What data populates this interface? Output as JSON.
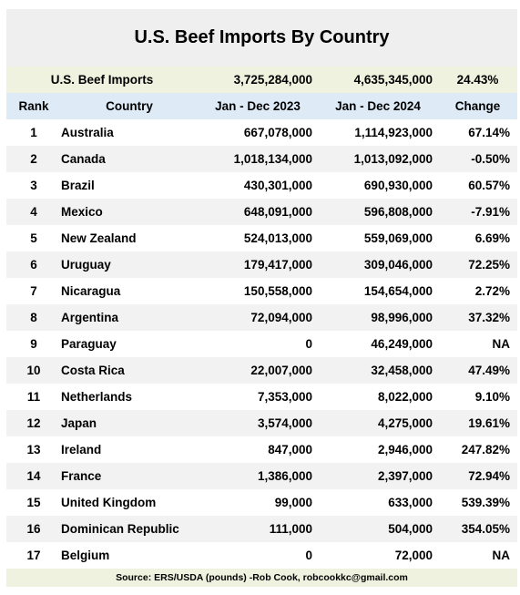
{
  "title": "U.S. Beef Imports By Country",
  "summary": {
    "label": "U.S. Beef Imports",
    "total_2023": "3,725,284,000",
    "total_2024": "4,635,345,000",
    "change": "24.43%"
  },
  "headers": {
    "rank": "Rank",
    "country": "Country",
    "col_2023": "Jan - Dec 2023",
    "col_2024": "Jan - Dec 2024",
    "change": "Change"
  },
  "chart_data": {
    "type": "table",
    "title": "U.S. Beef Imports By Country",
    "columns": [
      "Rank",
      "Country",
      "Jan - Dec 2023",
      "Jan - Dec 2024",
      "Change"
    ],
    "rows": [
      {
        "rank": "1",
        "country": "Australia",
        "v2023": "667,078,000",
        "v2024": "1,114,923,000",
        "change": "67.14%"
      },
      {
        "rank": "2",
        "country": "Canada",
        "v2023": "1,018,134,000",
        "v2024": "1,013,092,000",
        "change": "-0.50%"
      },
      {
        "rank": "3",
        "country": "Brazil",
        "v2023": "430,301,000",
        "v2024": "690,930,000",
        "change": "60.57%"
      },
      {
        "rank": "4",
        "country": "Mexico",
        "v2023": "648,091,000",
        "v2024": "596,808,000",
        "change": "-7.91%"
      },
      {
        "rank": "5",
        "country": "New Zealand",
        "v2023": "524,013,000",
        "v2024": "559,069,000",
        "change": "6.69%"
      },
      {
        "rank": "6",
        "country": "Uruguay",
        "v2023": "179,417,000",
        "v2024": "309,046,000",
        "change": "72.25%"
      },
      {
        "rank": "7",
        "country": "Nicaragua",
        "v2023": "150,558,000",
        "v2024": "154,654,000",
        "change": "2.72%"
      },
      {
        "rank": "8",
        "country": "Argentina",
        "v2023": "72,094,000",
        "v2024": "98,996,000",
        "change": "37.32%"
      },
      {
        "rank": "9",
        "country": "Paraguay",
        "v2023": "0",
        "v2024": "46,249,000",
        "change": "NA"
      },
      {
        "rank": "10",
        "country": "Costa Rica",
        "v2023": "22,007,000",
        "v2024": "32,458,000",
        "change": "47.49%"
      },
      {
        "rank": "11",
        "country": "Netherlands",
        "v2023": "7,353,000",
        "v2024": "8,022,000",
        "change": "9.10%"
      },
      {
        "rank": "12",
        "country": "Japan",
        "v2023": "3,574,000",
        "v2024": "4,275,000",
        "change": "19.61%"
      },
      {
        "rank": "13",
        "country": "Ireland",
        "v2023": "847,000",
        "v2024": "2,946,000",
        "change": "247.82%"
      },
      {
        "rank": "14",
        "country": "France",
        "v2023": "1,386,000",
        "v2024": "2,397,000",
        "change": "72.94%"
      },
      {
        "rank": "15",
        "country": "United Kingdom",
        "v2023": "99,000",
        "v2024": "633,000",
        "change": "539.39%"
      },
      {
        "rank": "16",
        "country": "Dominican Republic",
        "v2023": "111,000",
        "v2024": "504,000",
        "change": "354.05%"
      },
      {
        "rank": "17",
        "country": "Belgium",
        "v2023": "0",
        "v2024": "72,000",
        "change": "NA"
      }
    ]
  },
  "footer": "Source: ERS/USDA (pounds) -Rob Cook, robcookkc@gmail.com",
  "colors": {
    "title_bg": "#efefef",
    "summary_bg": "#eef2de",
    "header_bg": "#deebf7",
    "stripe_bg": "#f2f2f2"
  }
}
